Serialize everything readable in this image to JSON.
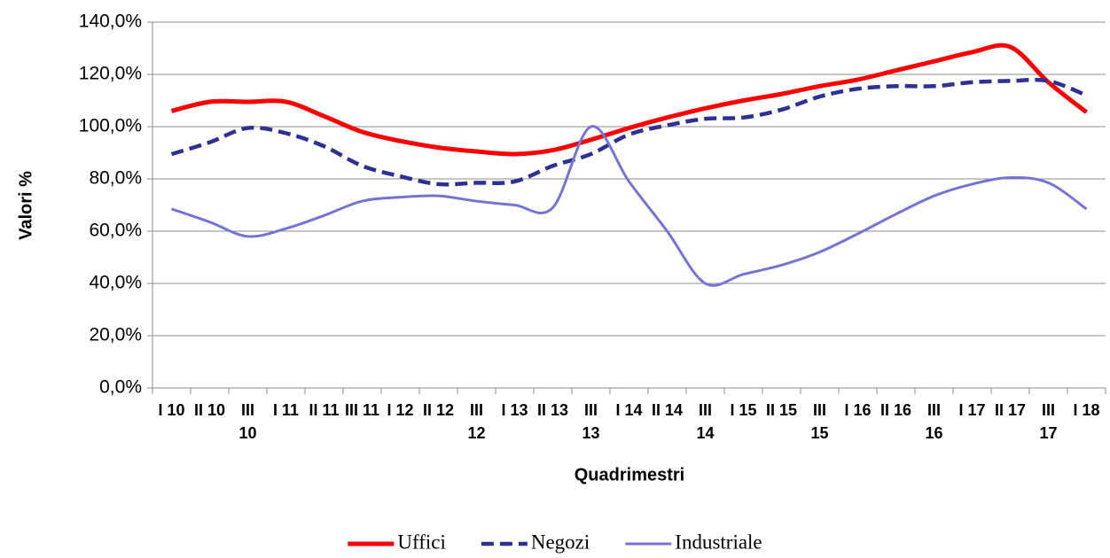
{
  "chart_data": {
    "type": "line",
    "y_label": "Valori %",
    "x_label": "Quadrimestri",
    "categories": [
      "I 10",
      "II 10",
      "III 10",
      "I 11",
      "II 11",
      "III 11",
      "I 12",
      "II 12",
      "III 12",
      "I 13",
      "II 13",
      "III 13",
      "I 14",
      "II 14",
      "III 14",
      "I 15",
      "II 15",
      "III 15",
      "I 16",
      "II 16",
      "III 16",
      "I 17",
      "II 17",
      "III 17",
      "I 18"
    ],
    "series": [
      {
        "name": "Uffici",
        "color": "#ff0000",
        "dash": false,
        "values": [
          106,
          109.5,
          109.5,
          109.5,
          104,
          98,
          94.5,
          92,
          90.5,
          89.5,
          91,
          95,
          99.5,
          103.5,
          107,
          110,
          112.5,
          115.5,
          118,
          121.5,
          125,
          128.5,
          130.5,
          117,
          105.5
        ]
      },
      {
        "name": "Negozi",
        "color": "#2e3192",
        "dash": true,
        "values": [
          89.5,
          94,
          99.5,
          97.5,
          92.5,
          85,
          81,
          78,
          78.5,
          79,
          85,
          89.5,
          97,
          100.5,
          103,
          103.5,
          106.5,
          111.5,
          114.5,
          115.5,
          115.5,
          117,
          117.5,
          117.5,
          112
        ]
      },
      {
        "name": "Industriale",
        "color": "#7474d4",
        "dash": false,
        "values": [
          68.5,
          63.5,
          58,
          61,
          66,
          71.5,
          73,
          73.5,
          71.5,
          70,
          69,
          100,
          79,
          60,
          40,
          43.5,
          47,
          52,
          59,
          66.5,
          73.5,
          78,
          80.5,
          78.5,
          68.5
        ]
      }
    ],
    "ylim": [
      0,
      140
    ],
    "yticks": [
      {
        "value": 0,
        "label": "0,0%"
      },
      {
        "value": 20,
        "label": "20,0%"
      },
      {
        "value": 40,
        "label": "40,0%"
      },
      {
        "value": 60,
        "label": "60,0%"
      },
      {
        "value": 80,
        "label": "80,0%"
      },
      {
        "value": 100,
        "label": "100,0%"
      },
      {
        "value": 120,
        "label": "120,0%"
      },
      {
        "value": 140,
        "label": "140,0%"
      }
    ],
    "grid": true,
    "legend": "bottom"
  }
}
